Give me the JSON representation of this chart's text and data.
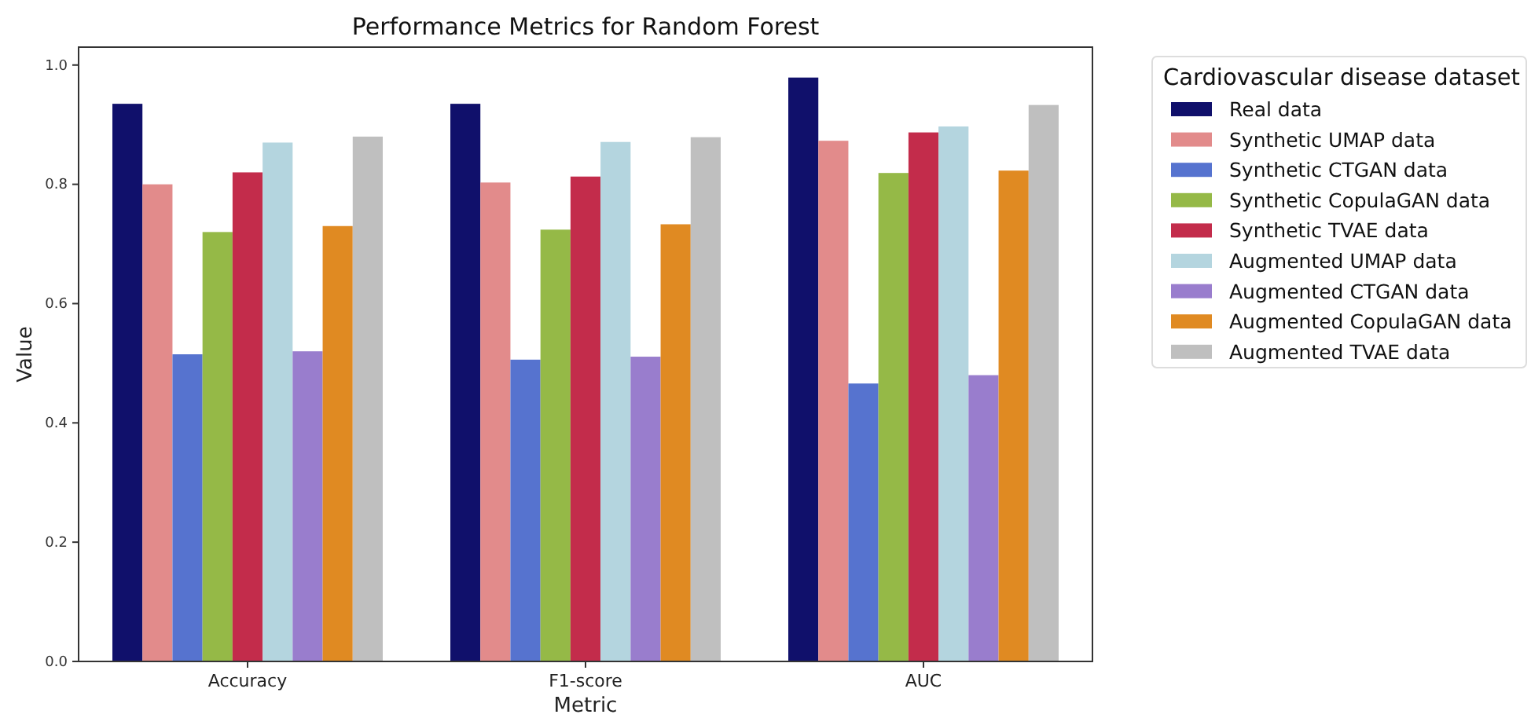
{
  "chart_data": {
    "type": "bar",
    "title": "Performance Metrics for Random Forest",
    "xlabel": "Metric",
    "ylabel": "Value",
    "legend_title": "Cardiovascular disease dataset",
    "legend": "top right",
    "categories": [
      "Accuracy",
      "F1-score",
      "AUC"
    ],
    "ylim": [
      0,
      1.03
    ],
    "yticks": [
      {
        "value": 0,
        "label": "0.0"
      },
      0.2,
      0.4,
      0.6,
      0.8,
      {
        "value": 1,
        "label": "1.0"
      }
    ],
    "series": [
      {
        "name": "Real data",
        "color": "#10106b",
        "values": [
          0.935,
          0.935,
          0.979
        ]
      },
      {
        "name": "Synthetic UMAP data",
        "color": "#e28b8b",
        "values": [
          0.8,
          0.803,
          0.873
        ]
      },
      {
        "name": "Synthetic CTGAN data",
        "color": "#5673cf",
        "values": [
          0.515,
          0.506,
          0.466
        ]
      },
      {
        "name": "Synthetic CopulaGAN data",
        "color": "#95b947",
        "values": [
          0.72,
          0.724,
          0.819
        ]
      },
      {
        "name": "Synthetic TVAE data",
        "color": "#c32c4b",
        "values": [
          0.82,
          0.813,
          0.887
        ]
      },
      {
        "name": "Augmented UMAP data",
        "color": "#b4d5df",
        "values": [
          0.87,
          0.871,
          0.897
        ]
      },
      {
        "name": "Augmented CTGAN data",
        "color": "#997dcd",
        "values": [
          0.52,
          0.511,
          0.48
        ]
      },
      {
        "name": "Augmented CopulaGAN data",
        "color": "#e08a22",
        "values": [
          0.73,
          0.733,
          0.823
        ]
      },
      {
        "name": "Augmented TVAE data",
        "color": "#bfbfbf",
        "values": [
          0.88,
          0.879,
          0.933
        ]
      }
    ]
  }
}
